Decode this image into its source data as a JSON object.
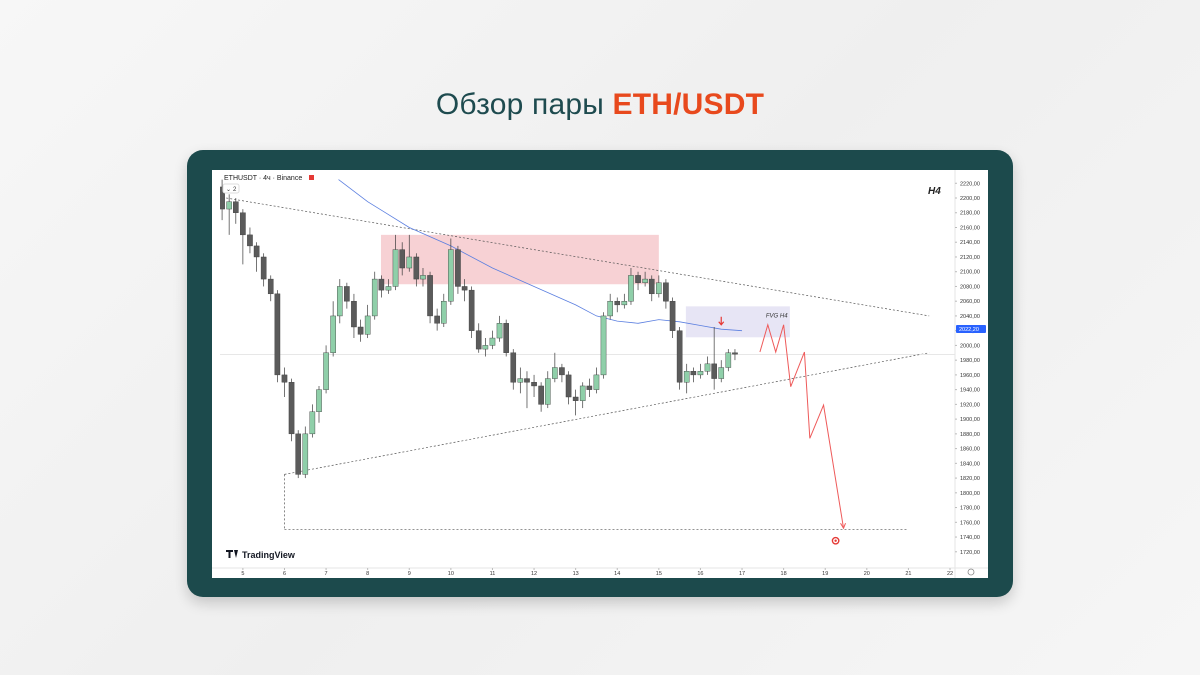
{
  "page": {
    "title_prefix": "Обзор пары",
    "title_highlight": "ETH/USDT"
  },
  "chart_data": {
    "type": "candlestick",
    "title": "ETHUSDT · 4ч · Binance",
    "indicator_count": "2",
    "timeframe_label": "H4",
    "watermark": "TradingView",
    "up_color": "#8fcfa9",
    "down_color": "#5b5b5b",
    "wick_color": "#3a3a3a",
    "x": [
      4.5,
      4.67,
      4.83,
      5.0,
      5.17,
      5.33,
      5.5,
      5.67,
      5.83,
      6.0,
      6.17,
      6.33,
      6.5,
      6.67,
      6.83,
      7.0,
      7.17,
      7.33,
      7.5,
      7.67,
      7.83,
      8.0,
      8.17,
      8.33,
      8.5,
      8.67,
      8.83,
      9.0,
      9.17,
      9.33,
      9.5,
      9.67,
      9.83,
      10.0,
      10.17,
      10.33,
      10.5,
      10.67,
      10.83,
      11.0,
      11.17,
      11.33,
      11.5,
      11.67,
      11.83,
      12.0,
      12.17,
      12.33,
      12.5,
      12.67,
      12.83,
      13.0,
      13.17,
      13.33,
      13.5,
      13.67,
      13.83,
      14.0,
      14.17,
      14.33,
      14.5,
      14.67,
      14.83,
      15.0,
      15.17,
      15.33,
      15.5,
      15.67,
      15.83,
      16.0,
      16.17,
      16.33,
      16.5,
      16.67,
      16.83
    ],
    "open": [
      2215,
      2185,
      2195,
      2180,
      2150,
      2135,
      2120,
      2090,
      2070,
      1960,
      1950,
      1880,
      1825,
      1880,
      1910,
      1940,
      1990,
      2040,
      2080,
      2060,
      2025,
      2015,
      2040,
      2090,
      2075,
      2080,
      2130,
      2105,
      2120,
      2090,
      2095,
      2040,
      2030,
      2060,
      2130,
      2080,
      2075,
      2020,
      1995,
      2000,
      2010,
      2030,
      1990,
      1950,
      1955,
      1950,
      1945,
      1920,
      1955,
      1970,
      1960,
      1930,
      1925,
      1945,
      1940,
      1960,
      2040,
      2060,
      2055,
      2060,
      2095,
      2085,
      2090,
      2070,
      2085,
      2060,
      2020,
      1950,
      1965,
      1960,
      1965,
      1975,
      1955,
      1970,
      1990
    ],
    "high": [
      2225,
      2205,
      2200,
      2185,
      2160,
      2140,
      2125,
      2095,
      2075,
      1970,
      1955,
      1885,
      1890,
      1920,
      1945,
      2000,
      2060,
      2090,
      2085,
      2070,
      2035,
      2055,
      2100,
      2095,
      2090,
      2150,
      2140,
      2150,
      2125,
      2105,
      2100,
      2050,
      2070,
      2145,
      2135,
      2090,
      2080,
      2030,
      2010,
      2020,
      2040,
      2035,
      1995,
      1970,
      1965,
      1960,
      1950,
      1965,
      1990,
      1975,
      1965,
      1940,
      1950,
      1955,
      1970,
      2045,
      2070,
      2065,
      2070,
      2105,
      2100,
      2100,
      2095,
      2095,
      2090,
      2065,
      2025,
      1975,
      1970,
      1975,
      1985,
      2025,
      1980,
      1995,
      1995
    ],
    "low": [
      2170,
      2150,
      2165,
      2110,
      2125,
      2100,
      2080,
      2060,
      1950,
      1930,
      1870,
      1820,
      1820,
      1875,
      1895,
      1935,
      1985,
      2030,
      2050,
      2010,
      2005,
      2010,
      2035,
      2065,
      2070,
      2075,
      2095,
      2100,
      2080,
      2080,
      2030,
      2020,
      2025,
      2055,
      2070,
      2060,
      2010,
      1990,
      1985,
      1995,
      2005,
      1985,
      1940,
      1935,
      1915,
      1930,
      1910,
      1915,
      1950,
      1950,
      1920,
      1905,
      1915,
      1930,
      1935,
      1955,
      2035,
      2045,
      2050,
      2055,
      2075,
      2080,
      2060,
      2065,
      2050,
      2010,
      1940,
      1935,
      1950,
      1955,
      1960,
      1940,
      1950,
      1965,
      1980
    ],
    "close": [
      2185,
      2195,
      2180,
      2150,
      2135,
      2120,
      2090,
      2070,
      1960,
      1950,
      1880,
      1825,
      1880,
      1910,
      1940,
      1990,
      2040,
      2080,
      2060,
      2025,
      2015,
      2040,
      2090,
      2075,
      2080,
      2130,
      2105,
      2120,
      2090,
      2095,
      2040,
      2030,
      2060,
      2130,
      2080,
      2075,
      2020,
      1995,
      2000,
      2010,
      2030,
      1990,
      1950,
      1955,
      1950,
      1945,
      1920,
      1955,
      1970,
      1960,
      1930,
      1925,
      1945,
      1940,
      1960,
      2040,
      2060,
      2055,
      2060,
      2095,
      2085,
      2090,
      2070,
      2085,
      2060,
      2020,
      1950,
      1965,
      1960,
      1965,
      1975,
      1955,
      1970,
      1990,
      1988
    ],
    "xlim": [
      4.45,
      22.12
    ],
    "xticks": [
      5,
      6,
      7,
      8,
      9,
      10,
      11,
      12,
      13,
      14,
      15,
      16,
      17,
      18,
      19,
      20,
      21,
      22
    ],
    "ylim": [
      1698,
      2238
    ],
    "yticks": [
      {
        "value": 1720,
        "label": "1720,00"
      },
      {
        "value": 1740,
        "label": "1740,00"
      },
      {
        "value": 1760,
        "label": "1760,00"
      },
      {
        "value": 1780,
        "label": "1780,00"
      },
      {
        "value": 1800,
        "label": "1800,00"
      },
      {
        "value": 1820,
        "label": "1820,00"
      },
      {
        "value": 1840,
        "label": "1840,00"
      },
      {
        "value": 1860,
        "label": "1860,00"
      },
      {
        "value": 1880,
        "label": "1880,00"
      },
      {
        "value": 1900,
        "label": "1900,00"
      },
      {
        "value": 1920,
        "label": "1920,00"
      },
      {
        "value": 1940,
        "label": "1940,00"
      },
      {
        "value": 1960,
        "label": "1960,00"
      },
      {
        "value": 1980,
        "label": "1980,00"
      },
      {
        "value": 2000,
        "label": "2000,00"
      },
      {
        "value": 2020,
        "label": "2020,00"
      },
      {
        "value": 2040,
        "label": "2040,00"
      },
      {
        "value": 2060,
        "label": "2060,00"
      },
      {
        "value": 2080,
        "label": "2080,00"
      },
      {
        "value": 2100,
        "label": "2100,00"
      },
      {
        "value": 2120,
        "label": "2120,00"
      },
      {
        "value": 2140,
        "label": "2140,00"
      },
      {
        "value": 2160,
        "label": "2160,00"
      },
      {
        "value": 2180,
        "label": "2180,00"
      },
      {
        "value": 2200,
        "label": "2200,00"
      },
      {
        "value": 2220,
        "label": "2220,00"
      }
    ],
    "moving_average": {
      "color": "#5b7fe0",
      "x": [
        7.3,
        8.0,
        9.0,
        10.0,
        11.0,
        12.0,
        13.0,
        13.5,
        14.0,
        14.5,
        15.0,
        15.5,
        16.0,
        16.5,
        17.0
      ],
      "values": [
        2225,
        2195,
        2160,
        2135,
        2105,
        2080,
        2055,
        2040,
        2033,
        2030,
        2035,
        2032,
        2027,
        2022,
        2020
      ]
    },
    "price_tag": {
      "value": 2022.2,
      "label": "2022,20",
      "color": "#2962ff"
    },
    "zones": [
      {
        "x": [
          8.32,
          15.0
        ],
        "y": [
          2083,
          2150
        ],
        "color": "#f6c9cc"
      },
      {
        "x": [
          15.65,
          18.15
        ],
        "y": [
          2011,
          2053
        ],
        "color": "#e3e0f3",
        "label": "FVG H4"
      }
    ],
    "trendlines": [
      {
        "x": [
          4.6,
          21.5
        ],
        "values": [
          2200,
          2040
        ]
      },
      {
        "x": [
          6.0,
          21.5
        ],
        "values": [
          1825,
          1990
        ]
      },
      {
        "x": [
          6.0,
          21.0
        ],
        "values": [
          1750,
          1750
        ]
      },
      {
        "x": [
          6.0,
          6.0
        ],
        "values": [
          1825,
          1750
        ]
      }
    ],
    "projection": {
      "color": "#ee5a5a",
      "x": [
        17.43,
        17.62,
        17.81,
        18.0,
        18.17,
        18.5,
        18.63,
        18.96,
        19.44
      ],
      "values": [
        1991,
        2028,
        1991,
        2028,
        1944,
        1991,
        1874,
        1919,
        1752
      ]
    },
    "signal_arrow": {
      "x": 16.5,
      "value": 2028,
      "color": "#e53935"
    },
    "target": {
      "x": 19.25,
      "value": 1735,
      "color": "#e53935"
    }
  }
}
